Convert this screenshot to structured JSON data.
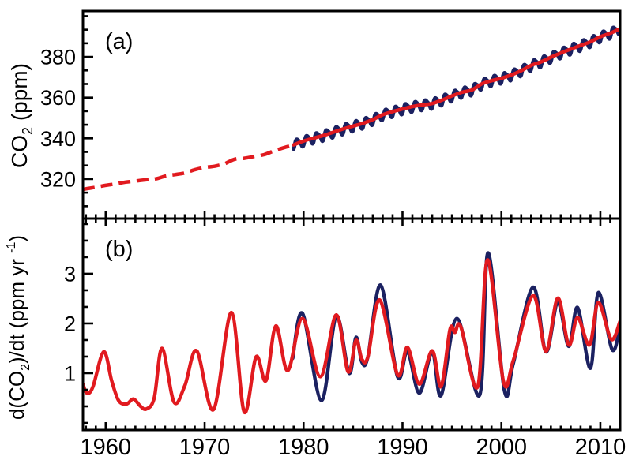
{
  "figure": {
    "background": "#ffffff",
    "frame_color": "#000000",
    "accent_red": "#e11a1f",
    "accent_navy": "#1b2161"
  },
  "chart_data": [
    {
      "type": "line",
      "panel_label": "(a)",
      "ylabel": "CO2 (ppm)",
      "ylabel_parts": [
        {
          "t": "CO"
        },
        {
          "t": "2",
          "script": "sub"
        },
        {
          "t": " (ppm)"
        }
      ],
      "xlim": [
        1957.7,
        2012.0
      ],
      "ylim": [
        300.6,
        402.5
      ],
      "yticks_major": [
        320,
        340,
        360,
        380
      ],
      "ytick_minor_step": 6.6667,
      "xticks_major": [
        1960,
        1970,
        1980,
        1990,
        2000,
        2010
      ],
      "xtick_minor_step": 1,
      "x_tick_labels_visible": false,
      "grid": false,
      "legend": "none",
      "series": [
        {
          "name": "co2-monthly-seasonal",
          "color": "#1b2161",
          "width": 4.8,
          "derived": "trend_plus_seasonal",
          "from": 1979.0,
          "to": 2012.0,
          "seasonal": {
            "amp1": 2.2,
            "peak_phase": 0.38,
            "amp2": 0.55,
            "phase2": 2.2
          }
        },
        {
          "name": "co2-smoothed-trend",
          "color": "#e11a1f",
          "width": 4.5,
          "dashed_until": 1979.0,
          "points": [
            [
              1957.7,
              314.8
            ],
            [
              1958,
              315.2
            ],
            [
              1959,
              316.0
            ],
            [
              1960,
              316.9
            ],
            [
              1961,
              317.6
            ],
            [
              1962,
              318.5
            ],
            [
              1963,
              319.0
            ],
            [
              1964,
              319.6
            ],
            [
              1965,
              320.0
            ],
            [
              1966,
              321.4
            ],
            [
              1967,
              322.2
            ],
            [
              1968,
              323.0
            ],
            [
              1969,
              324.6
            ],
            [
              1970,
              325.7
            ],
            [
              1971,
              326.3
            ],
            [
              1972,
              327.5
            ],
            [
              1973,
              329.7
            ],
            [
              1974,
              330.2
            ],
            [
              1975,
              331.1
            ],
            [
              1976,
              332.0
            ],
            [
              1977,
              333.8
            ],
            [
              1978,
              335.4
            ],
            [
              1979,
              336.8
            ],
            [
              1980,
              338.7
            ],
            [
              1981,
              340.1
            ],
            [
              1982,
              341.4
            ],
            [
              1983,
              343.0
            ],
            [
              1984,
              344.6
            ],
            [
              1985,
              346.0
            ],
            [
              1986,
              347.4
            ],
            [
              1987,
              349.2
            ],
            [
              1988,
              351.6
            ],
            [
              1989,
              353.1
            ],
            [
              1990,
              354.4
            ],
            [
              1991,
              355.6
            ],
            [
              1992,
              356.4
            ],
            [
              1993,
              357.1
            ],
            [
              1994,
              358.8
            ],
            [
              1995,
              360.8
            ],
            [
              1996,
              362.6
            ],
            [
              1997,
              363.7
            ],
            [
              1998,
              366.7
            ],
            [
              1999,
              368.3
            ],
            [
              2000,
              369.5
            ],
            [
              2001,
              371.1
            ],
            [
              2002,
              373.2
            ],
            [
              2003,
              375.8
            ],
            [
              2004,
              377.5
            ],
            [
              2005,
              379.8
            ],
            [
              2006,
              381.9
            ],
            [
              2007,
              383.8
            ],
            [
              2008,
              385.6
            ],
            [
              2009,
              387.4
            ],
            [
              2010,
              389.9
            ],
            [
              2011,
              391.6
            ],
            [
              2012,
              393.8
            ]
          ]
        }
      ]
    },
    {
      "type": "line",
      "panel_label": "(b)",
      "ylabel": "d(CO2)/dt (ppm yr -1)",
      "ylabel_parts": [
        {
          "t": "d(CO"
        },
        {
          "t": "2",
          "script": "sub"
        },
        {
          "t": ")/dt (ppm yr "
        },
        {
          "t": "-1",
          "script": "sup"
        },
        {
          "t": ")"
        }
      ],
      "xlim": [
        1957.7,
        2012.0
      ],
      "ylim": [
        -0.143,
        4.11
      ],
      "yticks_major": [
        1,
        2,
        3
      ],
      "ytick_minor_step": 0.33333,
      "xticks_major": [
        1960,
        1970,
        1980,
        1990,
        2000,
        2010
      ],
      "xtick_minor_step": 1,
      "x_tick_labels_visible": true,
      "grid": false,
      "legend": "none",
      "series": [
        {
          "name": "growth-rate-navy",
          "color": "#1b2161",
          "width": 4.4,
          "points": [
            [
              1978.9,
              1.3
            ],
            [
              1979.9,
              2.2
            ],
            [
              1981.8,
              0.45
            ],
            [
              1983.3,
              2.15
            ],
            [
              1984.6,
              1.0
            ],
            [
              1985.3,
              1.72
            ],
            [
              1985.9,
              1.22
            ],
            [
              1986.5,
              1.33
            ],
            [
              1987.8,
              2.77
            ],
            [
              1989.5,
              0.93
            ],
            [
              1990.5,
              1.44
            ],
            [
              1991.7,
              0.6
            ],
            [
              1993.0,
              1.43
            ],
            [
              1993.9,
              0.55
            ],
            [
              1995.5,
              2.1
            ],
            [
              1997.8,
              0.56
            ],
            [
              1998.65,
              3.42
            ],
            [
              2000.3,
              0.65
            ],
            [
              2001.2,
              1.2
            ],
            [
              2003.2,
              2.73
            ],
            [
              2004.5,
              1.43
            ],
            [
              2005.7,
              2.42
            ],
            [
              2006.8,
              1.54
            ],
            [
              2007.7,
              2.32
            ],
            [
              2009.0,
              1.1
            ],
            [
              2009.8,
              2.62
            ],
            [
              2011.2,
              1.47
            ],
            [
              2012.0,
              1.97
            ]
          ]
        },
        {
          "name": "growth-rate-red",
          "color": "#e11a1f",
          "width": 4.4,
          "points": [
            [
              1957.7,
              0.78
            ],
            [
              1958.1,
              0.6
            ],
            [
              1958.7,
              0.72
            ],
            [
              1959.8,
              1.43
            ],
            [
              1960.6,
              0.85
            ],
            [
              1961.3,
              0.45
            ],
            [
              1962.1,
              0.38
            ],
            [
              1962.8,
              0.48
            ],
            [
              1963.5,
              0.34
            ],
            [
              1964.1,
              0.28
            ],
            [
              1964.9,
              0.5
            ],
            [
              1965.7,
              1.5
            ],
            [
              1966.9,
              0.42
            ],
            [
              1968.0,
              0.75
            ],
            [
              1969.2,
              1.45
            ],
            [
              1970.9,
              0.27
            ],
            [
              1972.7,
              2.22
            ],
            [
              1974.0,
              0.22
            ],
            [
              1975.2,
              1.33
            ],
            [
              1976.2,
              0.85
            ],
            [
              1977.2,
              1.95
            ],
            [
              1978.4,
              1.05
            ],
            [
              1979.9,
              2.1
            ],
            [
              1981.7,
              0.93
            ],
            [
              1983.3,
              2.17
            ],
            [
              1984.5,
              1.03
            ],
            [
              1985.3,
              1.66
            ],
            [
              1985.9,
              1.28
            ],
            [
              1986.5,
              1.33
            ],
            [
              1987.7,
              2.47
            ],
            [
              1989.5,
              0.97
            ],
            [
              1990.5,
              1.52
            ],
            [
              1991.7,
              0.78
            ],
            [
              1993.0,
              1.45
            ],
            [
              1993.9,
              0.73
            ],
            [
              1994.8,
              1.88
            ],
            [
              1995.3,
              1.82
            ],
            [
              1995.9,
              1.93
            ],
            [
              1997.6,
              0.73
            ],
            [
              1998.6,
              3.28
            ],
            [
              2000.2,
              0.84
            ],
            [
              2001.2,
              1.26
            ],
            [
              2003.2,
              2.56
            ],
            [
              2004.5,
              1.44
            ],
            [
              2005.7,
              2.51
            ],
            [
              2006.8,
              1.57
            ],
            [
              2007.7,
              2.12
            ],
            [
              2008.9,
              1.57
            ],
            [
              2009.8,
              2.42
            ],
            [
              2011.1,
              1.68
            ],
            [
              2012.0,
              2.05
            ]
          ]
        }
      ]
    }
  ]
}
